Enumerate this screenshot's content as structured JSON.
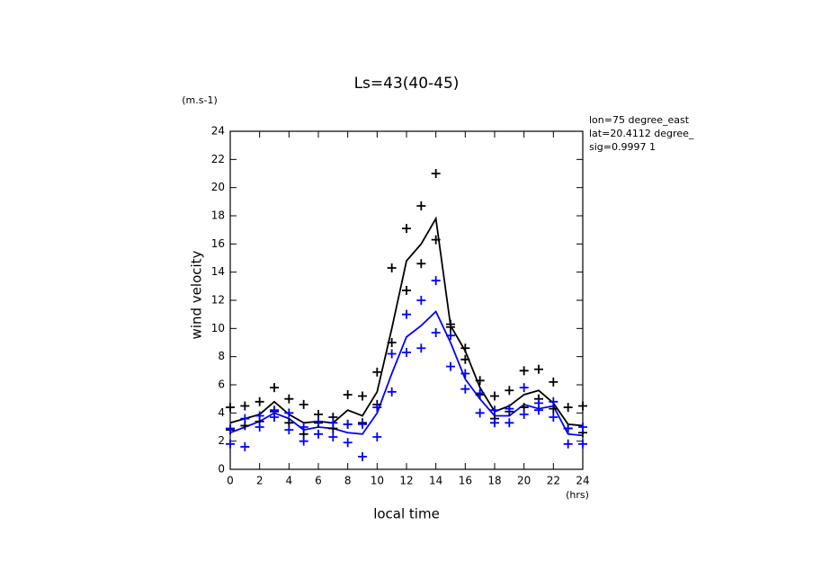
{
  "chart_data": {
    "type": "line",
    "title": "Ls=43(40-45)",
    "y_unit": "(m.s-1)",
    "ylabel": "wind velocity",
    "xlabel": "local time",
    "x_unit": "(hrs)",
    "annotations": [
      "lon=75 degree_east",
      "lat=20.4112 degree_",
      "sig=0.9997 1"
    ],
    "x": [
      0,
      1,
      2,
      3,
      4,
      5,
      6,
      7,
      8,
      9,
      10,
      11,
      12,
      13,
      14,
      15,
      16,
      17,
      18,
      19,
      20,
      21,
      22,
      23,
      24
    ],
    "xlim": [
      0,
      24
    ],
    "xticks": [
      0,
      2,
      4,
      6,
      8,
      10,
      12,
      14,
      16,
      18,
      20,
      22,
      24
    ],
    "ylim": [
      0,
      24
    ],
    "yticks": [
      0,
      2,
      4,
      6,
      8,
      10,
      12,
      14,
      16,
      18,
      20,
      22,
      24
    ],
    "series": [
      {
        "style": "line",
        "color": "#000000",
        "values": [
          3.3,
          3.6,
          3.9,
          4.8,
          3.9,
          3.3,
          3.4,
          3.3,
          4.2,
          3.8,
          5.5,
          10,
          14.8,
          16,
          17.8,
          10.2,
          8.4,
          5.8,
          4.1,
          4.5,
          5.3,
          5.6,
          4.7,
          3.2,
          3.1
        ]
      },
      {
        "style": "line",
        "color": "#0000ff",
        "values": [
          2.6,
          3.0,
          3.4,
          4.0,
          3.6,
          2.8,
          3.0,
          2.9,
          2.6,
          2.5,
          4.0,
          6.8,
          9.4,
          10.2,
          11.2,
          9.0,
          6.4,
          5.0,
          3.8,
          3.8,
          4.6,
          4.3,
          4.5,
          2.5,
          2.4
        ]
      },
      {
        "style": "cross",
        "color": "#000000",
        "values": [
          4.4,
          4.5,
          4.8,
          5.8,
          5.0,
          4.6,
          3.9,
          3.7,
          5.3,
          5.2,
          6.9,
          14.3,
          17.1,
          18.7,
          21,
          10.3,
          8.6,
          6.3,
          5.2,
          5.6,
          7.0,
          7.1,
          6.2,
          4.4,
          4.5
        ]
      },
      {
        "style": "cross",
        "color": "#000000",
        "values": [
          2.8,
          3.1,
          3.4,
          4.1,
          3.3,
          2.5,
          3.3,
          2.9,
          3.2,
          3.3,
          4.6,
          9,
          12.7,
          14.6,
          16.3,
          10.1,
          7.8,
          5.3,
          3.6,
          4.1,
          4.4,
          5.0,
          4.3,
          2.9,
          2.6
        ]
      },
      {
        "style": "cross",
        "color": "#0000ff",
        "values": [
          2.9,
          3.6,
          3.8,
          4.2,
          4.0,
          3.0,
          3.4,
          3.3,
          3.2,
          3.2,
          4.4,
          8.2,
          11,
          12,
          13.4,
          9.5,
          6.8,
          5.4,
          4.2,
          4.3,
          5.8,
          4.7,
          4.8,
          2.9,
          3.0
        ]
      },
      {
        "style": "cross",
        "color": "#0000ff",
        "values": [
          1.8,
          1.6,
          3.0,
          3.7,
          2.8,
          2.0,
          2.5,
          2.3,
          1.9,
          0.9,
          2.3,
          5.5,
          8.3,
          8.6,
          9.7,
          7.3,
          5.7,
          4.0,
          3.3,
          3.3,
          3.9,
          4.2,
          3.7,
          1.8,
          1.8
        ]
      }
    ]
  }
}
